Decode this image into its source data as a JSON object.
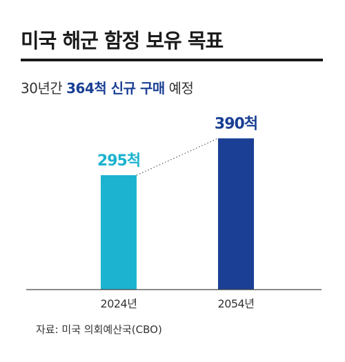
{
  "header": {
    "title": "미국 해군 함정 보유 목표",
    "subtitle_prefix": "30년간 ",
    "subtitle_highlight": "364척 신규 구매",
    "subtitle_suffix": " 예정"
  },
  "footer": {
    "source": "자료: 미국 의회예산국(CBO)"
  },
  "chart_data": {
    "type": "bar",
    "categories": [
      "2024년",
      "2054년"
    ],
    "values": [
      295,
      390
    ],
    "value_labels": [
      "295척",
      "390척"
    ],
    "colors": [
      "#1bb3cf",
      "#1a3f94"
    ],
    "connector": "dotted",
    "ylim": [
      0,
      420
    ]
  }
}
